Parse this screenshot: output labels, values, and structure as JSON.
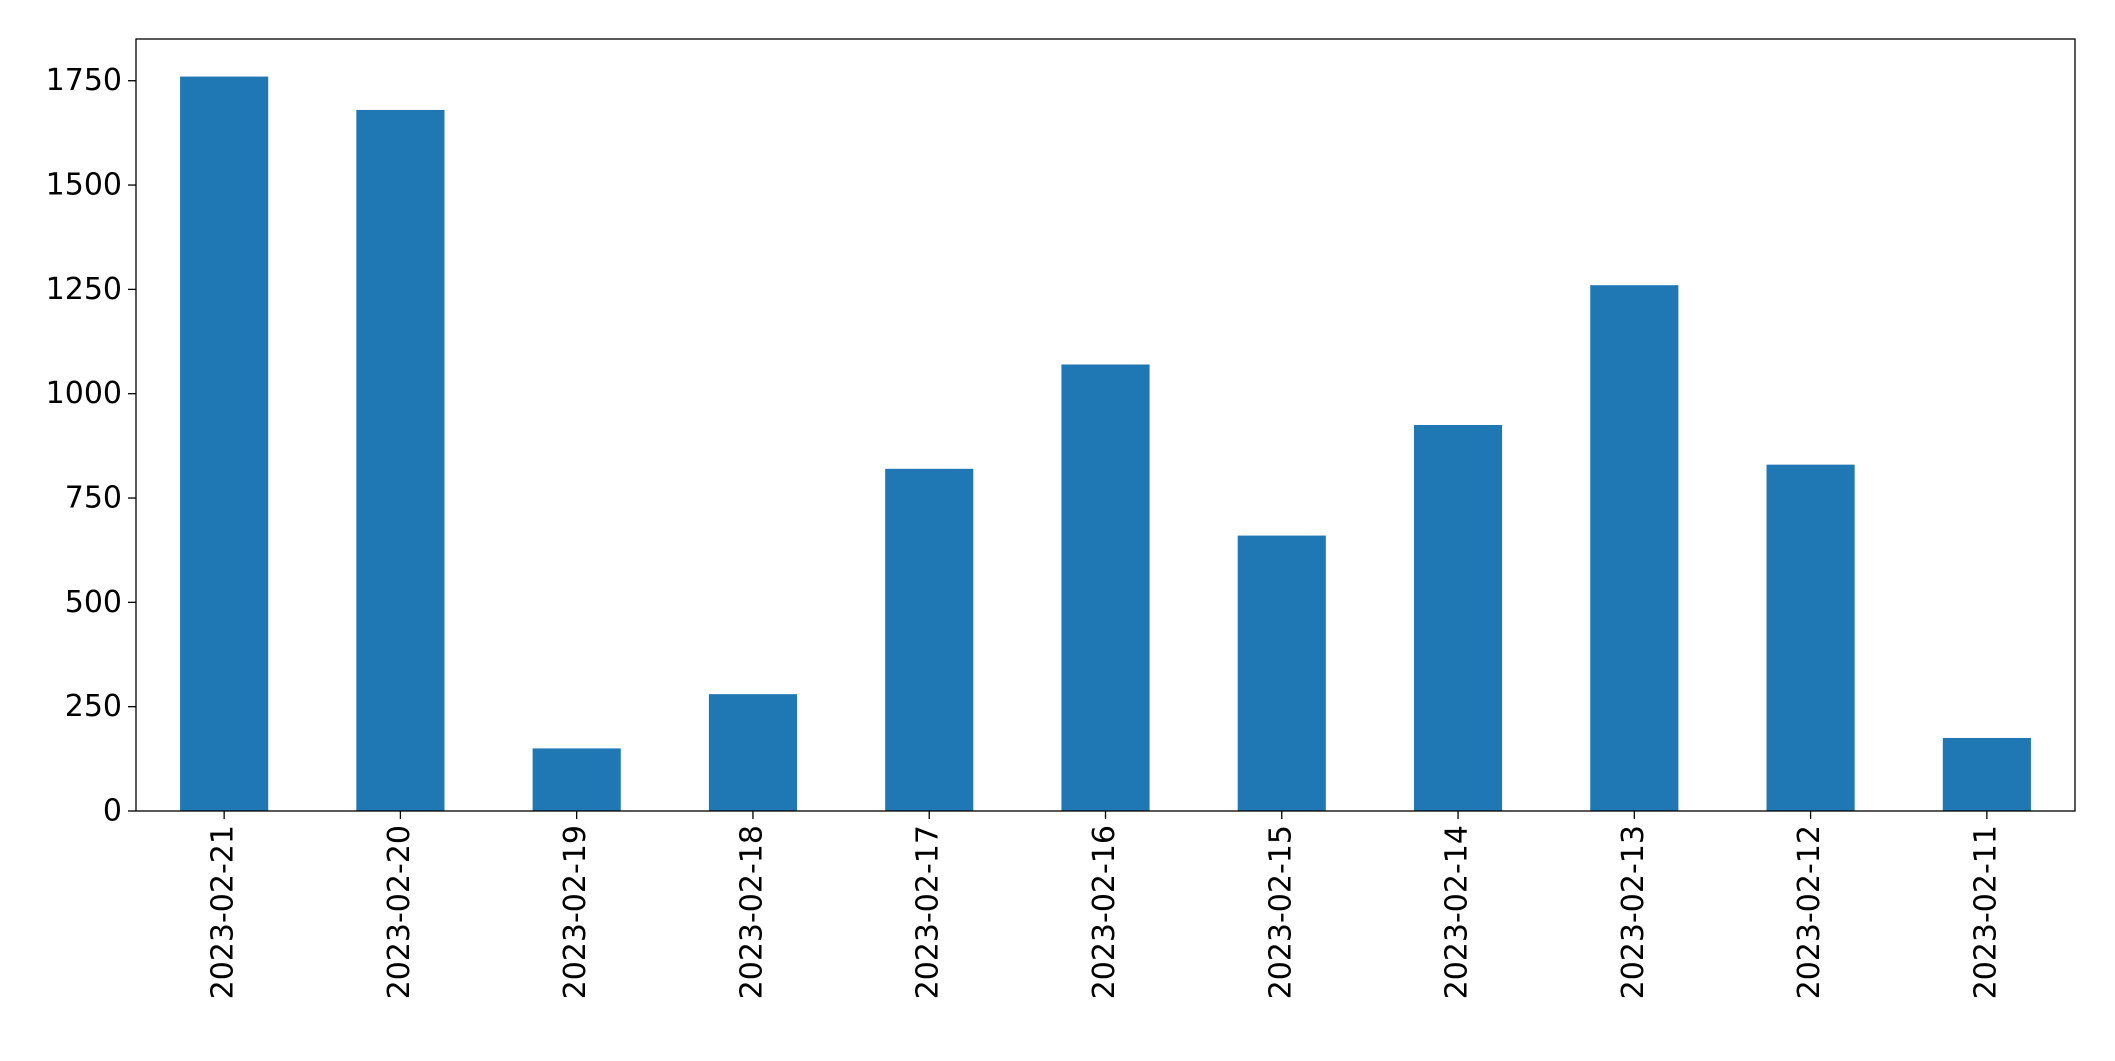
{
  "chart_data": {
    "type": "bar",
    "categories": [
      "2023-02-21",
      "2023-02-20",
      "2023-02-19",
      "2023-02-18",
      "2023-02-17",
      "2023-02-16",
      "2023-02-15",
      "2023-02-14",
      "2023-02-13",
      "2023-02-12",
      "2023-02-11"
    ],
    "values": [
      1760,
      1680,
      150,
      280,
      820,
      1070,
      660,
      925,
      1260,
      830,
      175
    ],
    "color": "#1f77b4",
    "ylim": [
      0,
      1850
    ],
    "yticks": [
      0,
      250,
      500,
      750,
      1000,
      1250,
      1500,
      1750
    ],
    "grid": false
  }
}
